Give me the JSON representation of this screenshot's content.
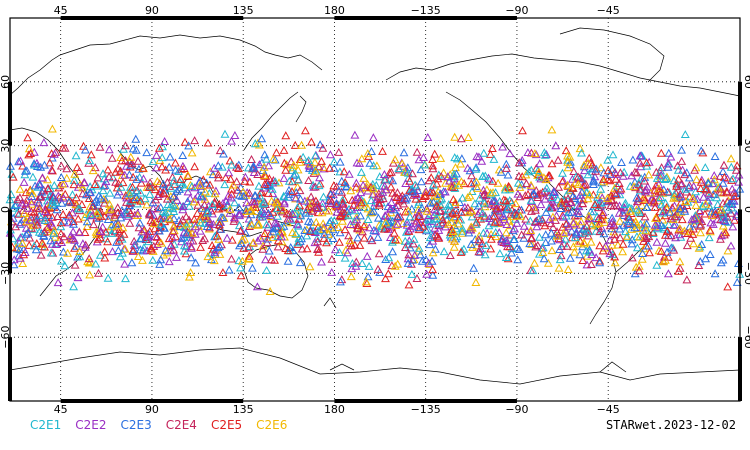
{
  "map": {
    "projection": "cylindrical equidistant",
    "center_longitude": 180,
    "lon_range": [
      20,
      380
    ],
    "lat_range": [
      -90,
      90
    ],
    "grid": true,
    "marker_shape": "open triangle",
    "point_density": "dense band between about 40S and 40N",
    "top_tick_labels": [
      "45",
      "90",
      "135",
      "180",
      "−135",
      "−90",
      "−45"
    ],
    "bottom_tick_labels": [
      "45",
      "90",
      "135",
      "180",
      "−135",
      "−90",
      "−45"
    ],
    "side_tick_labels": [
      "60",
      "30",
      "0",
      "−30",
      "−60"
    ]
  },
  "legend": [
    {
      "label": "C2E1",
      "color": "#21b8cf"
    },
    {
      "label": "C2E2",
      "color": "#9a2fc4"
    },
    {
      "label": "C2E3",
      "color": "#2a6fe0"
    },
    {
      "label": "C2E4",
      "color": "#c4235a"
    },
    {
      "label": "C2E5",
      "color": "#e02020"
    },
    {
      "label": "C2E6",
      "color": "#f2b800"
    }
  ],
  "footer": {
    "product_label": "STARwet.2023-12-02"
  }
}
